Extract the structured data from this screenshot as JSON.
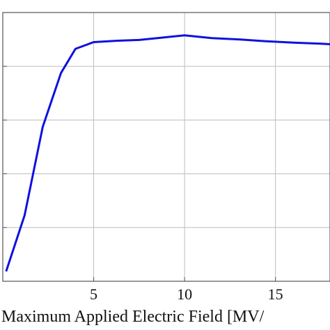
{
  "chart_data": {
    "type": "line",
    "xlabel": "Maximum Applied Electric Field [MV/",
    "ylabel": "",
    "title": "",
    "xlim": [
      0,
      18
    ],
    "ylim": [
      0.0,
      1.0
    ],
    "xticks": [
      5,
      10,
      15
    ],
    "xtick_labels": [
      "5",
      "10",
      "15"
    ],
    "yticks": [
      0.0,
      0.2,
      0.4,
      0.6,
      0.8,
      1.0
    ],
    "grid": true,
    "series": [
      {
        "color": "#1010e0",
        "x": [
          0.2,
          1.2,
          2.2,
          3.2,
          4.0,
          5.0,
          6.3,
          7.5,
          8.5,
          10.0,
          11.5,
          13.0,
          14.5,
          16.0,
          17.5,
          18.0
        ],
        "y": [
          0.04,
          0.245,
          0.575,
          0.775,
          0.865,
          0.89,
          0.895,
          0.898,
          0.905,
          0.915,
          0.905,
          0.9,
          0.893,
          0.888,
          0.884,
          0.882
        ]
      }
    ]
  }
}
